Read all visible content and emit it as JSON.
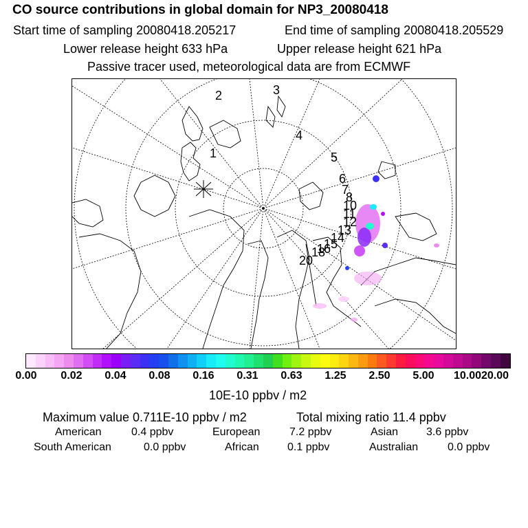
{
  "header": {
    "title": "CO  source contributions in global domain for NP3_20080418",
    "start_time": "Start time of sampling 20080418.205217",
    "end_time": "End time of sampling 20080418.205529",
    "lower_height": "Lower release height  633 hPa",
    "upper_height": "Upper release height  621 hPa",
    "note": "Passive tracer used, meteorological data are from ECMWF"
  },
  "map": {
    "projection": "north-polar-stereographic",
    "trajectory_labels": [
      "1",
      "2",
      "3",
      "4",
      "5",
      "6",
      "7",
      "8",
      "10",
      "11",
      "12",
      "13",
      "14",
      "15",
      "16",
      "18",
      "20"
    ]
  },
  "colorbar": {
    "tick_labels": [
      "0.00",
      "0.02",
      "0.04",
      "0.08",
      "0.16",
      "0.31",
      "0.63",
      "1.25",
      "2.50",
      "5.00",
      "10.00",
      "20.00"
    ],
    "unit": "10E-10 ppbv / m2",
    "colors": [
      "#fde8fd",
      "#fbd2fb",
      "#f8bcf8",
      "#f4a6f4",
      "#ee8cee",
      "#e06ef0",
      "#d24ef4",
      "#c22cf8",
      "#b010fc",
      "#9a00fa",
      "#7a1ef8",
      "#5a2cf6",
      "#3c30f4",
      "#2440f2",
      "#1850ee",
      "#1070ea",
      "#1090f0",
      "#10b0f4",
      "#10d0f8",
      "#18ecf8",
      "#20fcf0",
      "#20fcd0",
      "#20f8b0",
      "#20f090",
      "#20e070",
      "#20d050",
      "#40e020",
      "#70f010",
      "#a0f410",
      "#c8f810",
      "#e8fc10",
      "#fcfc10",
      "#fcec10",
      "#fcd410",
      "#fcb810",
      "#fc9a10",
      "#fc7a10",
      "#fc5a20",
      "#fc3a30",
      "#fc1c40",
      "#fc0c5c",
      "#fc0a78",
      "#f40a90",
      "#e80a9c",
      "#d40a9a",
      "#c00a92",
      "#aa0a88",
      "#90087a",
      "#74086a",
      "#5a0858",
      "#40063e"
    ]
  },
  "stats": {
    "max_value": "Maximum value  0.711E-10 ppbv / m2",
    "total_mixing": "Total mixing ratio      11.4 ppbv",
    "sources": [
      {
        "name": "American",
        "value": "0.4 ppbv"
      },
      {
        "name": "European",
        "value": "7.2 ppbv"
      },
      {
        "name": "Asian",
        "value": "3.6 ppbv"
      },
      {
        "name": "South American",
        "value": "0.0 ppbv"
      },
      {
        "name": "African",
        "value": "0.1 ppbv"
      },
      {
        "name": "Australian",
        "value": "0.0 ppbv"
      }
    ]
  }
}
